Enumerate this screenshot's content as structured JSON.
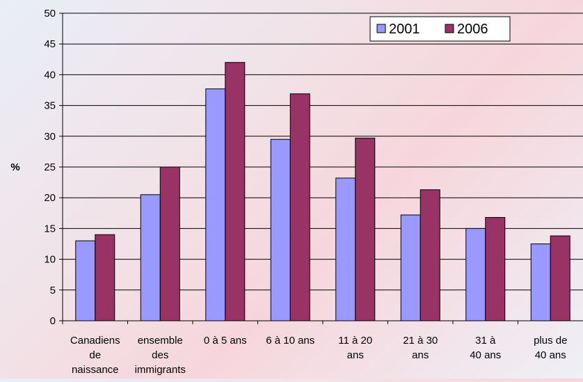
{
  "chart_data": {
    "type": "bar",
    "title": "",
    "xlabel": "",
    "ylabel": "%",
    "ylim": [
      0,
      50
    ],
    "yticks": [
      0,
      5,
      10,
      15,
      20,
      25,
      30,
      35,
      40,
      45,
      50
    ],
    "grid": true,
    "legend_position": "top-right",
    "categories": [
      [
        "Canadiens",
        "de",
        "naissance"
      ],
      [
        "ensemble",
        "des",
        "immigrants"
      ],
      [
        "0 à 5 ans"
      ],
      [
        "6 à 10 ans"
      ],
      [
        "11 à 20",
        "ans"
      ],
      [
        "21 à 30",
        "ans"
      ],
      [
        "31 à",
        "40 ans"
      ],
      [
        "plus de",
        "40 ans"
      ]
    ],
    "series": [
      {
        "name": "2001",
        "color": "#9999ff",
        "values": [
          13.0,
          20.5,
          37.7,
          29.5,
          23.2,
          17.2,
          15.0,
          12.5
        ]
      },
      {
        "name": "2006",
        "color": "#993366",
        "values": [
          14.0,
          25.0,
          42.0,
          36.9,
          29.7,
          21.3,
          16.8,
          13.8
        ]
      }
    ]
  }
}
